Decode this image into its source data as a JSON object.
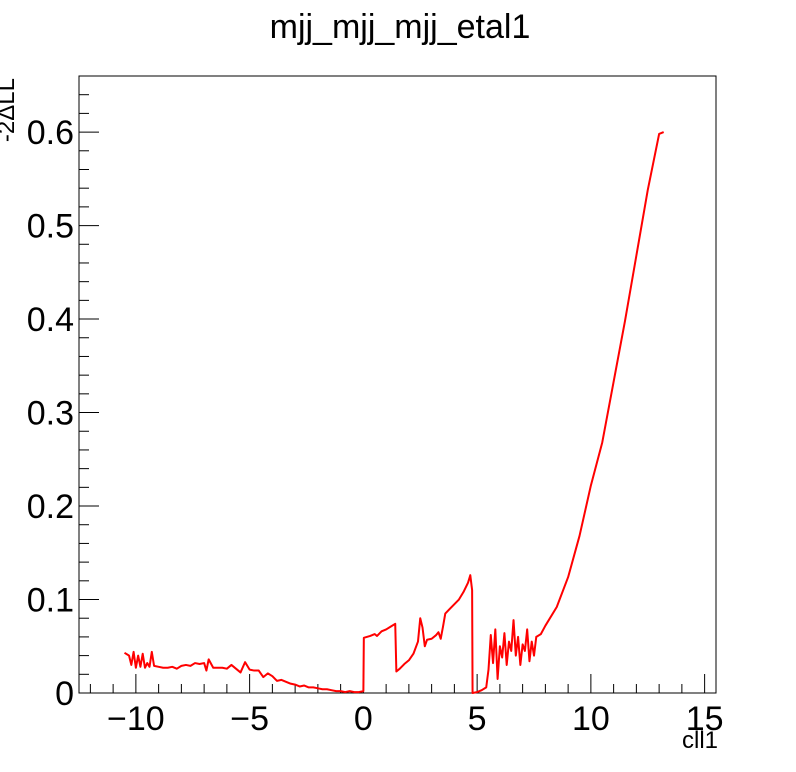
{
  "chart_data": {
    "type": "line",
    "title": "mjj_mjj_mjj_etal1",
    "xlabel": "cll1",
    "ylabel": "-2ΔLL",
    "xlim": [
      -12.5,
      15.5
    ],
    "ylim": [
      0,
      0.66
    ],
    "xticks": [
      -10,
      -5,
      0,
      5,
      10,
      15
    ],
    "xtick_labels": [
      "−10",
      "−5",
      "0",
      "5",
      "10",
      "15"
    ],
    "yticks": [
      0,
      0.1,
      0.2,
      0.3,
      0.4,
      0.5,
      0.6
    ],
    "ytick_labels": [
      "0",
      "0.1",
      "0.2",
      "0.3",
      "0.4",
      "0.5",
      "0.6"
    ],
    "grid": false,
    "series": [
      {
        "color": "#ff0000",
        "x": [
          -10.5,
          -10.3,
          -10.2,
          -10.1,
          -10.0,
          -9.9,
          -9.8,
          -9.7,
          -9.6,
          -9.5,
          -9.4,
          -9.3,
          -9.2,
          -9.0,
          -8.8,
          -8.6,
          -8.4,
          -8.2,
          -8.0,
          -7.8,
          -7.6,
          -7.4,
          -7.2,
          -7.0,
          -6.9,
          -6.8,
          -6.6,
          -6.4,
          -6.2,
          -6.0,
          -5.8,
          -5.6,
          -5.4,
          -5.2,
          -5.0,
          -4.8,
          -4.6,
          -4.4,
          -4.2,
          -4.0,
          -3.8,
          -3.6,
          -3.4,
          -3.2,
          -3.0,
          -2.8,
          -2.6,
          -2.4,
          -2.2,
          -2.0,
          -1.8,
          -1.6,
          -1.4,
          -1.2,
          -1.0,
          -0.8,
          -0.6,
          -0.4,
          -0.2,
          0.0,
          0.02,
          0.3,
          0.5,
          0.6,
          0.8,
          1.0,
          1.2,
          1.4,
          1.45,
          1.6,
          1.8,
          2.0,
          2.2,
          2.4,
          2.5,
          2.6,
          2.7,
          2.8,
          3.0,
          3.2,
          3.3,
          3.4,
          3.5,
          3.6,
          3.8,
          4.0,
          4.2,
          4.4,
          4.6,
          4.7,
          4.78,
          4.8,
          5.0,
          5.2,
          5.4,
          5.5,
          5.6,
          5.7,
          5.8,
          5.9,
          6.0,
          6.1,
          6.2,
          6.3,
          6.4,
          6.5,
          6.6,
          6.7,
          6.8,
          6.9,
          7.0,
          7.1,
          7.2,
          7.3,
          7.4,
          7.5,
          7.6,
          7.8,
          8.0,
          8.5,
          9.0,
          9.5,
          10.0,
          10.5,
          11.0,
          11.5,
          12.0,
          12.5,
          13.0,
          13.2
        ],
        "y": [
          0.043,
          0.04,
          0.03,
          0.044,
          0.027,
          0.04,
          0.028,
          0.042,
          0.027,
          0.032,
          0.028,
          0.044,
          0.029,
          0.028,
          0.027,
          0.027,
          0.028,
          0.026,
          0.029,
          0.03,
          0.029,
          0.032,
          0.031,
          0.032,
          0.024,
          0.036,
          0.027,
          0.027,
          0.027,
          0.026,
          0.03,
          0.026,
          0.022,
          0.033,
          0.025,
          0.024,
          0.024,
          0.017,
          0.021,
          0.018,
          0.013,
          0.014,
          0.012,
          0.01,
          0.009,
          0.007,
          0.008,
          0.006,
          0.006,
          0.005,
          0.004,
          0.004,
          0.003,
          0.002,
          0.002,
          0.001,
          0.002,
          0.001,
          0.001,
          0.002,
          0.059,
          0.061,
          0.063,
          0.061,
          0.066,
          0.068,
          0.071,
          0.074,
          0.023,
          0.026,
          0.031,
          0.035,
          0.042,
          0.055,
          0.08,
          0.07,
          0.05,
          0.057,
          0.058,
          0.062,
          0.065,
          0.058,
          0.071,
          0.085,
          0.09,
          0.095,
          0.1,
          0.108,
          0.118,
          0.126,
          0.11,
          0.0,
          0.001,
          0.003,
          0.006,
          0.025,
          0.062,
          0.032,
          0.068,
          0.015,
          0.05,
          0.038,
          0.064,
          0.03,
          0.055,
          0.045,
          0.078,
          0.04,
          0.06,
          0.03,
          0.052,
          0.045,
          0.068,
          0.034,
          0.055,
          0.04,
          0.06,
          0.063,
          0.072,
          0.092,
          0.124,
          0.168,
          0.222,
          0.268,
          0.333,
          0.398,
          0.468,
          0.538,
          0.598,
          0.6
        ]
      }
    ]
  }
}
